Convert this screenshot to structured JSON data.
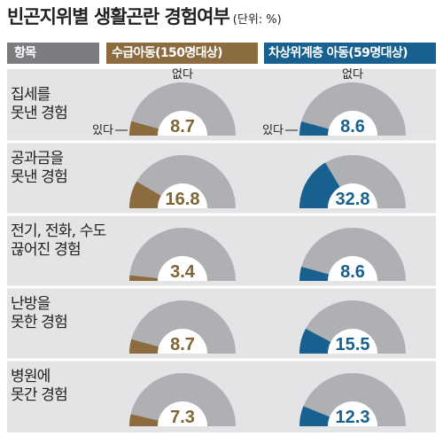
{
  "title": "빈곤지위별 생활곤란 경험여부",
  "unit": "(단위: %)",
  "headers": {
    "item": "항목",
    "series_a": "수급아동(150명대상)",
    "series_b": "차상위계층 아동(59명대상)"
  },
  "legend": {
    "yes": "있다",
    "no": "없다"
  },
  "colors": {
    "series_a": "#8c6b3e",
    "series_b": "#17608f",
    "track": "#aeb0b3",
    "row_bg": "#e3e4e5"
  },
  "chart_data": {
    "type": "gauge",
    "ylim": [
      0,
      100
    ],
    "categories": [
      [
        "집세를",
        "못낸 경험"
      ],
      [
        "공과금을",
        "못낸 경험"
      ],
      [
        "전기, 전화, 수도",
        "끊어진 경험"
      ],
      [
        "난방을",
        "못한 경험"
      ],
      [
        "병원에",
        "못간 경험"
      ]
    ],
    "series": [
      {
        "name": "수급아동(150명대상)",
        "values": [
          8.7,
          16.8,
          3.4,
          8.7,
          7.3
        ]
      },
      {
        "name": "차상위계층 아동(59명대상)",
        "values": [
          8.6,
          32.8,
          8.6,
          15.5,
          12.3
        ]
      }
    ]
  }
}
